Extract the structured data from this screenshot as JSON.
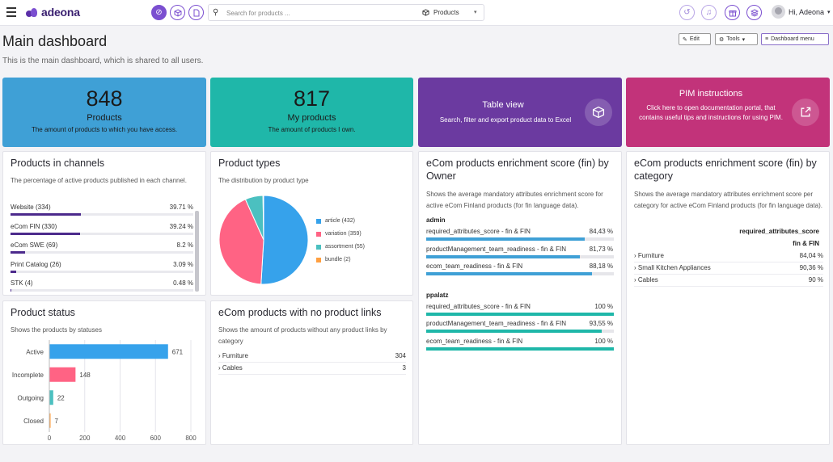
{
  "brand": "adeona",
  "search": {
    "placeholder": "Search for products ...",
    "scope": "Products"
  },
  "user": {
    "greeting": "Hi, Adeona"
  },
  "header": {
    "title": "Main dashboard",
    "subtitle": "This is the main dashboard, which is shared to all users.",
    "edit_label": "Edit",
    "tools_label": "Tools",
    "dashboard_menu_label": "Dashboard menu"
  },
  "tiles": [
    {
      "number": "848",
      "label": "Products",
      "desc": "The amount of products to which you have access.",
      "color": "#3fa0d6"
    },
    {
      "number": "817",
      "label": "My products",
      "desc": "The amount of products I own.",
      "color": "#1fb7a9"
    },
    {
      "title": "Table view",
      "desc": "Search, filter and export product data to Excel",
      "color": "#6b3aa0"
    },
    {
      "title": "PIM instructions",
      "desc": "Click here to open documentation portal, that contains useful tips and instructions for using PIM.",
      "color": "#c2337a"
    }
  ],
  "channels": {
    "title": "Products in channels",
    "desc": "The percentage of active products published in each channel.",
    "items": [
      {
        "name": "Website (334)",
        "pct": "39.71 %",
        "value": 39.71
      },
      {
        "name": "eCom FIN (330)",
        "pct": "39.24 %",
        "value": 39.24
      },
      {
        "name": "eCom SWE (69)",
        "pct": "8.2 %",
        "value": 8.2
      },
      {
        "name": "Print Catalog (26)",
        "pct": "3.09 %",
        "value": 3.09
      },
      {
        "name": "STK (4)",
        "pct": "0.48 %",
        "value": 0.48
      }
    ]
  },
  "types": {
    "title": "Product types",
    "desc": "The distribution by product type",
    "chart_data": {
      "type": "pie",
      "slices": [
        {
          "label": "article (432)",
          "value": 432,
          "color": "#36a2eb"
        },
        {
          "label": "variation (359)",
          "value": 359,
          "color": "#ff6384"
        },
        {
          "label": "assortment (55)",
          "value": 55,
          "color": "#4bc0c0"
        },
        {
          "label": "bundle (2)",
          "value": 2,
          "color": "#ff9f40"
        }
      ]
    }
  },
  "owner_score": {
    "title": "eCom products enrichment score (fin) by Owner",
    "desc": "Shows the average mandatory attributes enrichment score for active eCom Finland products (for fin language data).",
    "groups": [
      {
        "owner": "admin",
        "color": "#3fa0d6",
        "rows": [
          {
            "label": "required_attributes_score - fin & FIN",
            "pct": "84,43 %",
            "value": 84.43
          },
          {
            "label": "productManagement_team_readiness - fin & FIN",
            "pct": "81,73 %",
            "value": 81.73
          },
          {
            "label": "ecom_team_readiness - fin & FIN",
            "pct": "88,18 %",
            "value": 88.18
          }
        ]
      },
      {
        "owner": "ppalatz",
        "color": "#1fb7a9",
        "rows": [
          {
            "label": "required_attributes_score - fin & FIN",
            "pct": "100 %",
            "value": 100
          },
          {
            "label": "productManagement_team_readiness - fin & FIN",
            "pct": "93,55 %",
            "value": 93.55
          },
          {
            "label": "ecom_team_readiness - fin & FIN",
            "pct": "100 %",
            "value": 100
          }
        ]
      }
    ]
  },
  "category_score": {
    "title": "eCom products enrichment score (fin) by category",
    "desc": "Shows the average mandatory attributes enrichment score per category for active eCom Finland products (for fin language data).",
    "col_header_1": "required_attributes_score",
    "col_header_2": "fin & FIN",
    "rows": [
      {
        "name": "Furniture",
        "value": "84,04 %"
      },
      {
        "name": "Small Kitchen Appliances",
        "value": "90,36 %"
      },
      {
        "name": "Cables",
        "value": "90 %"
      }
    ]
  },
  "status": {
    "title": "Product status",
    "desc": "Shows the products by statuses",
    "chart_data": {
      "type": "bar",
      "orientation": "horizontal",
      "categories": [
        "Active",
        "Incomplete",
        "Outgoing",
        "Closed"
      ],
      "values": [
        671,
        148,
        22,
        7
      ],
      "colors": [
        "#36a2eb",
        "#ff6384",
        "#4bc0c0",
        "#ff9f40"
      ],
      "xlim": [
        0,
        800
      ],
      "xticks": [
        "0",
        "200",
        "400",
        "600",
        "800"
      ]
    }
  },
  "nolinks": {
    "title": "eCom products with no product links",
    "desc": "Shows the amount of products without any product links by category",
    "rows": [
      {
        "name": "Furniture",
        "value": "304"
      },
      {
        "name": "Cables",
        "value": "3"
      }
    ]
  }
}
